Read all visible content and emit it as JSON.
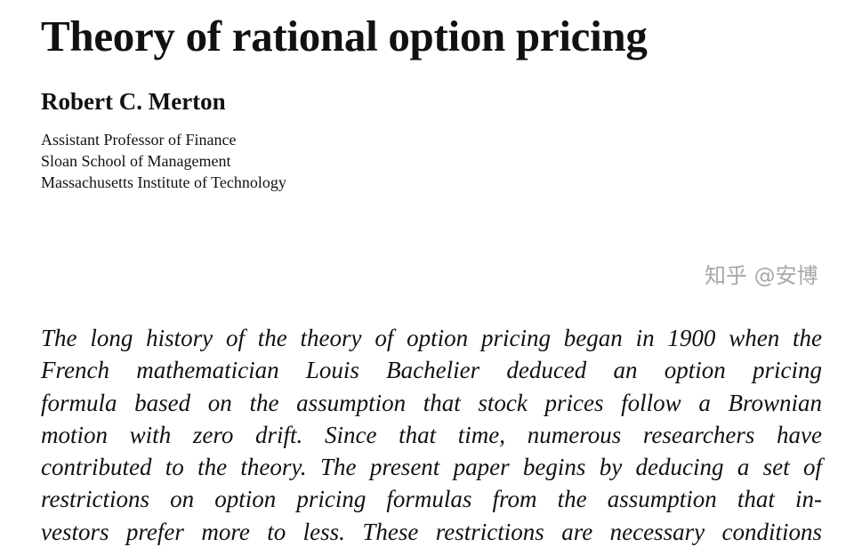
{
  "title": "Theory of rational option pricing",
  "author": "Robert C. Merton",
  "affiliation": [
    "Assistant Professor of Finance",
    "Sloan School of Management",
    "Massachusetts Institute of Technology"
  ],
  "abstract_lines": [
    "The long history of the theory of option pricing began in 1900 when the",
    "French mathematician Louis Bachelier deduced an option pricing",
    "formula based on the assumption that stock prices follow a Brownian",
    "motion with zero drift. Since that time, numerous researchers have",
    "contributed to the theory. The present paper begins by deducing a set of",
    "restrictions on option pricing formulas from the assumption that in-",
    "vestors prefer more to less. These restrictions are necessary conditions"
  ],
  "watermark": "知乎 @安博"
}
